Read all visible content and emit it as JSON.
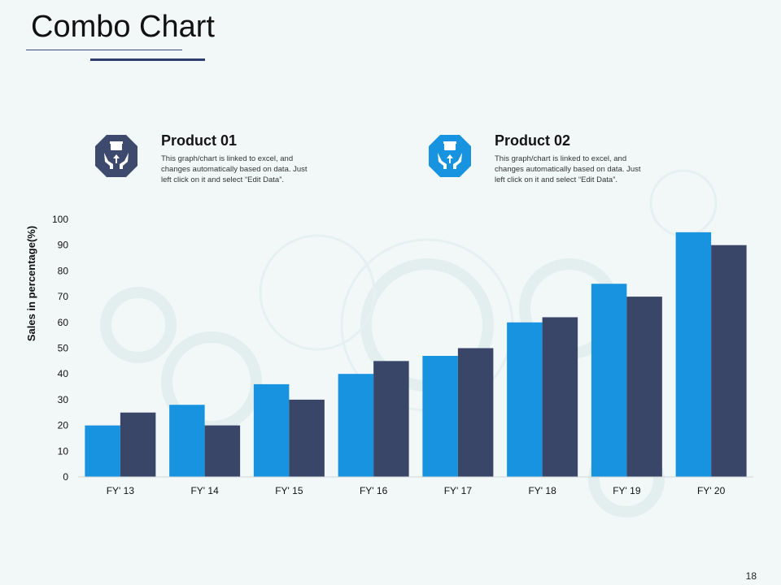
{
  "title": "Combo Chart",
  "page_number": "18",
  "colors": {
    "product01": "#1793e0",
    "product02": "#3a4668",
    "icon01_bg": "#3d4a6e",
    "icon02_bg": "#1793e0"
  },
  "products": [
    {
      "name": "Product 01",
      "icon": "hands-gift-icon",
      "desc_lines": [
        "This graph/chart is linked to excel, and",
        "changes automatically  based on data. Just",
        "left click on it and select “Edit Data”."
      ]
    },
    {
      "name": "Product 02",
      "icon": "hands-gift-icon",
      "desc_lines": [
        "This graph/chart is linked to excel, and",
        "changes automatically  based on data. Just",
        "left click on it and select “Edit Data”."
      ]
    }
  ],
  "chart_data": {
    "type": "bar",
    "title": "",
    "xlabel": "",
    "ylabel": "Sales in percentage(%)",
    "ylim": [
      0,
      100
    ],
    "yticks": [
      0,
      10,
      20,
      30,
      40,
      50,
      60,
      70,
      80,
      90,
      100
    ],
    "categories": [
      "FY' 13",
      "FY' 14",
      "FY' 15",
      "FY' 16",
      "FY' 17",
      "FY' 18",
      "FY' 19",
      "FY' 20"
    ],
    "series": [
      {
        "name": "Product 01",
        "values": [
          20,
          28,
          36,
          40,
          47,
          60,
          75,
          95
        ]
      },
      {
        "name": "Product 02",
        "values": [
          25,
          20,
          30,
          45,
          50,
          62,
          70,
          90
        ]
      }
    ],
    "grid": false
  }
}
